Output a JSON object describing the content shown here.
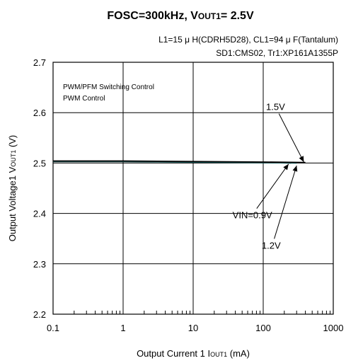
{
  "chart_data": {
    "type": "line",
    "title": {
      "prefix": "FOSC=300kHz, V",
      "sub": "OUT1",
      "suffix": "= 2.5V"
    },
    "conditions": [
      "L1=15 μ H(CDRH5D28), CL1=94 μ F(Tantalum)",
      "SD1:CMS02, Tr1:XP161A1355P"
    ],
    "legend_text": [
      "PWM/PFM Switching Control",
      "PWM  Control"
    ],
    "xlabel": {
      "prefix": "Output Current 1 I",
      "sub": "OUT1",
      "suffix": " (mA)"
    },
    "ylabel": {
      "prefix": "Output Voltage1  V",
      "sub": "OUT1",
      "suffix": " (V)"
    },
    "x_scale": "log",
    "xlim": [
      0.1,
      1000
    ],
    "ylim": [
      2.2,
      2.7
    ],
    "x_ticks": [
      0.1,
      1,
      10,
      100,
      1000
    ],
    "x_tick_labels": [
      "0.1",
      "1",
      "10",
      "100",
      "1000"
    ],
    "y_ticks": [
      2.2,
      2.3,
      2.4,
      2.5,
      2.6,
      2.7
    ],
    "y_tick_labels": [
      "2.2",
      "2.3",
      "2.4",
      "2.5",
      "2.6",
      "2.7"
    ],
    "grid": true,
    "series": [
      {
        "name": "VIN=0.9V",
        "color": "#000000",
        "x": [
          0.1,
          1,
          10,
          100,
          250
        ],
        "y": [
          2.503,
          2.503,
          2.502,
          2.501,
          2.5
        ]
      },
      {
        "name": "1.2V",
        "color": "#1a6e6e",
        "x": [
          0.1,
          1,
          10,
          100,
          300
        ],
        "y": [
          2.503,
          2.503,
          2.502,
          2.501,
          2.5
        ]
      },
      {
        "name": "1.5V",
        "color": "#000000",
        "x": [
          0.1,
          1,
          10,
          100,
          400
        ],
        "y": [
          2.504,
          2.504,
          2.503,
          2.502,
          2.501
        ]
      }
    ],
    "annotations": [
      {
        "text": "1.5V",
        "label_x": 150,
        "label_y": 2.605,
        "arrow_x": 380,
        "arrow_y": 2.502
      },
      {
        "text": "VIN=0.9V",
        "label_x": 70,
        "label_y": 2.39,
        "arrow_x": 230,
        "arrow_y": 2.498
      },
      {
        "text": "1.2V",
        "label_x": 130,
        "label_y": 2.33,
        "arrow_x": 300,
        "arrow_y": 2.495
      }
    ]
  }
}
